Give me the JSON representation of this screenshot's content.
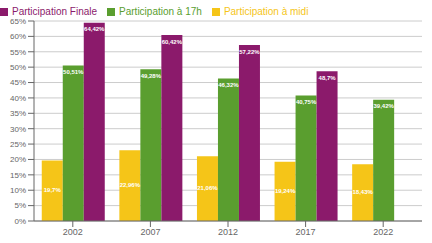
{
  "chart_data": {
    "type": "bar",
    "categories": [
      "2002",
      "2007",
      "2012",
      "2017",
      "2022"
    ],
    "series": [
      {
        "name": "Participation à midi",
        "color": "#f5c518",
        "values": [
          19.7,
          22.96,
          21.06,
          19.24,
          18.43
        ],
        "value_labels": [
          "19,7%",
          "22,96%",
          "21,06%",
          "19,24%",
          "18,43%"
        ]
      },
      {
        "name": "Participation à 17h",
        "color": "#5a9e2f",
        "values": [
          50.51,
          49.28,
          46.32,
          40.75,
          39.42
        ],
        "value_labels": [
          "50,51%",
          "49,28%",
          "46,32%",
          "40,75%",
          "39,42%"
        ]
      },
      {
        "name": "Participation Finale",
        "color": "#8b1a6b",
        "values": [
          64.42,
          60.42,
          57.22,
          48.7,
          0
        ],
        "value_labels": [
          "64,42%",
          "60,42%",
          "57,22%",
          "48,7%",
          null
        ]
      }
    ],
    "ylim": [
      0,
      65
    ],
    "yticks": [
      {
        "value": 0,
        "label": "0%"
      },
      {
        "value": 5,
        "label": "5%"
      },
      {
        "value": 10,
        "label": "10%"
      },
      {
        "value": 15,
        "label": "15%"
      },
      {
        "value": 20,
        "label": "20%"
      },
      {
        "value": 25,
        "label": "25%"
      },
      {
        "value": 30,
        "label": "30%"
      },
      {
        "value": 35,
        "label": "35%"
      },
      {
        "value": 40,
        "label": "40%"
      },
      {
        "value": 45,
        "label": "45%"
      },
      {
        "value": 50,
        "label": "50%"
      },
      {
        "value": 55,
        "label": "55%"
      },
      {
        "value": 60,
        "label": "60%"
      },
      {
        "value": 65,
        "label": "65%"
      }
    ],
    "grid": true,
    "legend": "top-left",
    "data_labels": true
  }
}
